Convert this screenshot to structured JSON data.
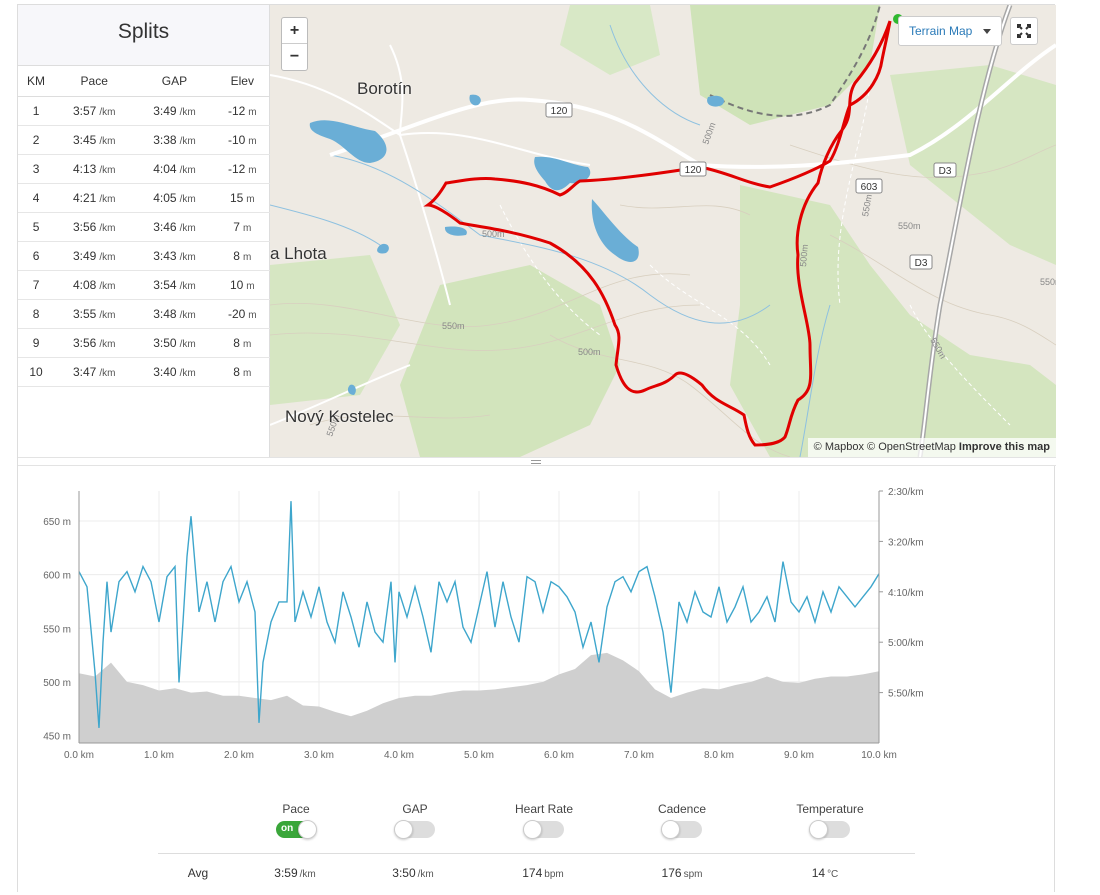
{
  "splits": {
    "title": "Splits",
    "headers": [
      "KM",
      "Pace",
      "GAP",
      "Elev"
    ],
    "rows": [
      {
        "km": "1",
        "pace": "3:57",
        "pace_unit": "/km",
        "gap": "3:49",
        "gap_unit": "/km",
        "elev": "-12",
        "elev_unit": "m"
      },
      {
        "km": "2",
        "pace": "3:45",
        "pace_unit": "/km",
        "gap": "3:38",
        "gap_unit": "/km",
        "elev": "-10",
        "elev_unit": "m"
      },
      {
        "km": "3",
        "pace": "4:13",
        "pace_unit": "/km",
        "gap": "4:04",
        "gap_unit": "/km",
        "elev": "-12",
        "elev_unit": "m"
      },
      {
        "km": "4",
        "pace": "4:21",
        "pace_unit": "/km",
        "gap": "4:05",
        "gap_unit": "/km",
        "elev": "15",
        "elev_unit": "m"
      },
      {
        "km": "5",
        "pace": "3:56",
        "pace_unit": "/km",
        "gap": "3:46",
        "gap_unit": "/km",
        "elev": "7",
        "elev_unit": "m"
      },
      {
        "km": "6",
        "pace": "3:49",
        "pace_unit": "/km",
        "gap": "3:43",
        "gap_unit": "/km",
        "elev": "8",
        "elev_unit": "m"
      },
      {
        "km": "7",
        "pace": "4:08",
        "pace_unit": "/km",
        "gap": "3:54",
        "gap_unit": "/km",
        "elev": "10",
        "elev_unit": "m"
      },
      {
        "km": "8",
        "pace": "3:55",
        "pace_unit": "/km",
        "gap": "3:48",
        "gap_unit": "/km",
        "elev": "-20",
        "elev_unit": "m"
      },
      {
        "km": "9",
        "pace": "3:56",
        "pace_unit": "/km",
        "gap": "3:50",
        "gap_unit": "/km",
        "elev": "8",
        "elev_unit": "m"
      },
      {
        "km": "10",
        "pace": "3:47",
        "pace_unit": "/km",
        "gap": "3:40",
        "gap_unit": "/km",
        "elev": "8",
        "elev_unit": "m"
      }
    ]
  },
  "map": {
    "zoom_in": "+",
    "zoom_out": "−",
    "style_select": "Terrain Map",
    "fullscreen_icon": "fullscreen-icon",
    "attribution": {
      "mapbox": "© Mapbox",
      "osm": "© OpenStreetMap",
      "improve": "Improve this map"
    },
    "places": [
      "Borotín",
      "a Lhota",
      "Nový Kostelec"
    ],
    "road_labels": [
      "120",
      "120",
      "603",
      "D3",
      "D3"
    ],
    "contour_labels": [
      "500m",
      "550m",
      "500m",
      "550m",
      "550m",
      "500m",
      "500m",
      "550m",
      "550m",
      "550m"
    ],
    "route_color": "#e00000",
    "water_color": "#6aaed6",
    "forest_color": "#c9e0b0"
  },
  "chart_data": {
    "type": "line",
    "x_label_unit": "km",
    "x_ticks": [
      "0.0 km",
      "1.0 km",
      "2.0 km",
      "3.0 km",
      "4.0 km",
      "5.0 km",
      "6.0 km",
      "7.0 km",
      "8.0 km",
      "9.0 km",
      "10.0 km"
    ],
    "xlim": [
      0,
      10
    ],
    "elevation_axis": {
      "ticks": [
        "650 m",
        "600 m",
        "550 m",
        "500 m",
        "450 m"
      ],
      "ylim": [
        443,
        678
      ]
    },
    "pace_axis": {
      "ticks": [
        "2:30/km",
        "3:20/km",
        "4:10/km",
        "5:00/km",
        "5:50/km"
      ],
      "range_seconds_per_km": [
        150,
        400
      ]
    },
    "grid": true,
    "series": [
      {
        "name": "Pace",
        "color": "#3ea6cc",
        "units": "seconds per km",
        "x": [
          0.0,
          0.1,
          0.2,
          0.25,
          0.3,
          0.35,
          0.4,
          0.5,
          0.6,
          0.7,
          0.8,
          0.9,
          1.0,
          1.1,
          1.2,
          1.25,
          1.3,
          1.35,
          1.4,
          1.5,
          1.6,
          1.7,
          1.8,
          1.9,
          2.0,
          2.1,
          2.2,
          2.25,
          2.3,
          2.4,
          2.5,
          2.6,
          2.65,
          2.7,
          2.8,
          2.9,
          3.0,
          3.1,
          3.2,
          3.3,
          3.4,
          3.5,
          3.6,
          3.7,
          3.8,
          3.9,
          3.95,
          4.0,
          4.1,
          4.2,
          4.3,
          4.4,
          4.5,
          4.6,
          4.7,
          4.8,
          4.9,
          5.0,
          5.1,
          5.2,
          5.3,
          5.4,
          5.5,
          5.6,
          5.7,
          5.8,
          5.9,
          6.0,
          6.1,
          6.2,
          6.3,
          6.4,
          6.5,
          6.6,
          6.7,
          6.8,
          6.9,
          7.0,
          7.1,
          7.2,
          7.3,
          7.4,
          7.5,
          7.6,
          7.7,
          7.8,
          7.9,
          8.0,
          8.1,
          8.2,
          8.3,
          8.4,
          8.5,
          8.6,
          8.7,
          8.8,
          8.9,
          9.0,
          9.1,
          9.2,
          9.3,
          9.4,
          9.5,
          9.6,
          9.7,
          9.8,
          9.9,
          10.0
        ],
        "values": [
          230,
          245,
          330,
          385,
          300,
          240,
          290,
          240,
          230,
          250,
          225,
          240,
          280,
          235,
          225,
          340,
          280,
          215,
          175,
          270,
          240,
          280,
          240,
          225,
          260,
          240,
          270,
          380,
          320,
          280,
          260,
          260,
          160,
          280,
          250,
          275,
          245,
          280,
          300,
          250,
          275,
          305,
          260,
          290,
          300,
          240,
          320,
          250,
          275,
          245,
          275,
          310,
          240,
          260,
          240,
          285,
          300,
          265,
          230,
          285,
          240,
          275,
          300,
          235,
          240,
          270,
          240,
          245,
          255,
          270,
          305,
          280,
          320,
          265,
          240,
          235,
          250,
          230,
          225,
          255,
          290,
          350,
          260,
          280,
          250,
          270,
          275,
          245,
          280,
          265,
          245,
          280,
          270,
          255,
          280,
          220,
          260,
          270,
          255,
          280,
          250,
          270,
          245,
          255,
          265,
          255,
          245,
          232
        ]
      },
      {
        "name": "Elevation",
        "color": "#cfcfcf",
        "units": "m",
        "x": [
          0.0,
          0.2,
          0.4,
          0.6,
          0.8,
          1.0,
          1.2,
          1.4,
          1.6,
          1.8,
          2.0,
          2.2,
          2.4,
          2.6,
          2.8,
          3.0,
          3.2,
          3.4,
          3.6,
          3.8,
          4.0,
          4.2,
          4.4,
          4.6,
          4.8,
          5.0,
          5.2,
          5.4,
          5.6,
          5.8,
          6.0,
          6.2,
          6.4,
          6.6,
          6.8,
          7.0,
          7.2,
          7.4,
          7.6,
          7.8,
          8.0,
          8.2,
          8.4,
          8.6,
          8.8,
          9.0,
          9.2,
          9.4,
          9.6,
          9.8,
          10.0
        ],
        "values": [
          508,
          505,
          518,
          500,
          497,
          492,
          494,
          490,
          491,
          487,
          487,
          485,
          483,
          487,
          478,
          477,
          472,
          468,
          473,
          480,
          485,
          487,
          487,
          490,
          492,
          492,
          493,
          495,
          497,
          500,
          507,
          512,
          525,
          527,
          520,
          510,
          493,
          485,
          490,
          494,
          493,
          497,
          500,
          505,
          500,
          499,
          503,
          505,
          505,
          507,
          510
        ]
      }
    ]
  },
  "legend": {
    "toggles": [
      {
        "label": "Pace",
        "state": "on",
        "on_text": "on"
      },
      {
        "label": "GAP",
        "state": "off"
      },
      {
        "label": "Heart Rate",
        "state": "off"
      },
      {
        "label": "Cadence",
        "state": "off"
      },
      {
        "label": "Temperature",
        "state": "off"
      }
    ],
    "avg": {
      "label": "Avg",
      "pace": "3:59",
      "pace_unit": "/km",
      "gap": "3:50",
      "gap_unit": "/km",
      "hr": "174",
      "hr_unit": "bpm",
      "cadence": "176",
      "cadence_unit": "spm",
      "temp": "14",
      "temp_unit": "°C"
    }
  }
}
